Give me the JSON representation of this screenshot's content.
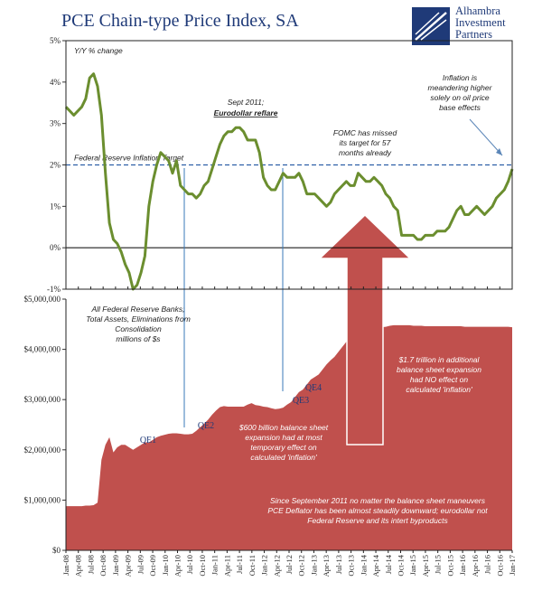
{
  "header": {
    "title": "PCE Chain-type Price Index, SA",
    "logo_line1": "Alhambra",
    "logo_line2": "Investment",
    "logo_line3": "Partners"
  },
  "colors": {
    "pce_line": "#6b8e2f",
    "balance_fill": "#c0504d",
    "target_line": "#2e5fa8",
    "qe_marker": "#3a7ab8",
    "text_dark": "#1f3a78",
    "annotation_white": "#ffffff"
  },
  "chart_data": [
    {
      "type": "line",
      "title": "PCE Chain-type Price Index, SA",
      "ylabel": "Y/Y % change",
      "ylim": [
        -1,
        5
      ],
      "yticks": [
        -1,
        0,
        1,
        2,
        3,
        4,
        5
      ],
      "ytick_labels": [
        "-1%",
        "0%",
        "1%",
        "2%",
        "3%",
        "4%",
        "5%"
      ],
      "x_start": "Jan-08",
      "x_end": "Jan-17",
      "series": [
        {
          "name": "PCE Y/Y",
          "values": [
            3.4,
            3.3,
            3.2,
            3.3,
            3.4,
            3.6,
            4.1,
            4.2,
            3.9,
            3.2,
            1.8,
            0.6,
            0.2,
            0.1,
            -0.1,
            -0.4,
            -0.6,
            -1.0,
            -0.9,
            -0.6,
            -0.2,
            1.0,
            1.6,
            2.0,
            2.3,
            2.2,
            2.1,
            1.8,
            2.1,
            1.5,
            1.4,
            1.3,
            1.3,
            1.2,
            1.3,
            1.5,
            1.6,
            1.9,
            2.2,
            2.5,
            2.7,
            2.8,
            2.8,
            2.9,
            2.9,
            2.8,
            2.6,
            2.6,
            2.6,
            2.3,
            1.7,
            1.5,
            1.4,
            1.4,
            1.6,
            1.8,
            1.7,
            1.7,
            1.7,
            1.8,
            1.6,
            1.3,
            1.3,
            1.3,
            1.2,
            1.1,
            1.0,
            1.1,
            1.3,
            1.4,
            1.5,
            1.6,
            1.5,
            1.5,
            1.8,
            1.7,
            1.6,
            1.6,
            1.7,
            1.6,
            1.5,
            1.3,
            1.2,
            1.0,
            0.9,
            0.3,
            0.3,
            0.3,
            0.3,
            0.2,
            0.2,
            0.3,
            0.3,
            0.3,
            0.4,
            0.4,
            0.4,
            0.5,
            0.7,
            0.9,
            1.0,
            0.8,
            0.8,
            0.9,
            1.0,
            0.9,
            0.8,
            0.9,
            1.0,
            1.2,
            1.3,
            1.4,
            1.6,
            1.9
          ]
        }
      ],
      "reference_line": {
        "label": "Federal Reserve Inflation Target",
        "value": 2.0
      },
      "annotations": [
        {
          "text_lines": [
            "Sept 2011;",
            "Eurodollar reflare"
          ]
        },
        {
          "text_lines": [
            "FOMC has missed",
            "its target for 57",
            "months already"
          ]
        },
        {
          "text_lines": [
            "Inflation is",
            "meandering higher",
            "solely on oil price",
            "base effects"
          ]
        }
      ]
    },
    {
      "type": "area",
      "title": "All Federal Reserve Banks; Total Assets, Eliminations from Consolidation",
      "ylabel": "millions of $s",
      "ylim": [
        0,
        5000000
      ],
      "yticks": [
        0,
        1000000,
        2000000,
        3000000,
        4000000,
        5000000
      ],
      "ytick_labels": [
        "$0",
        "$1,000,000",
        "$2,000,000",
        "$3,000,000",
        "$4,000,000",
        "$5,000,000"
      ],
      "label_lines": [
        "All Federal Reserve Banks;",
        "Total Assets, Eliminations from",
        "Consolidation",
        "millions of $s"
      ],
      "series": [
        {
          "name": "Total Assets",
          "values": [
            880000,
            880000,
            880000,
            880000,
            880000,
            890000,
            890000,
            900000,
            950000,
            1800000,
            2100000,
            2250000,
            1950000,
            2050000,
            2100000,
            2100000,
            2050000,
            2000000,
            2050000,
            2100000,
            2150000,
            2150000,
            2200000,
            2250000,
            2280000,
            2300000,
            2320000,
            2330000,
            2330000,
            2320000,
            2310000,
            2310000,
            2320000,
            2380000,
            2450000,
            2520000,
            2600000,
            2700000,
            2780000,
            2850000,
            2870000,
            2860000,
            2860000,
            2860000,
            2860000,
            2860000,
            2900000,
            2930000,
            2890000,
            2880000,
            2860000,
            2850000,
            2830000,
            2810000,
            2820000,
            2840000,
            2900000,
            2950000,
            3050000,
            3150000,
            3200000,
            3300000,
            3400000,
            3450000,
            3500000,
            3600000,
            3700000,
            3780000,
            3850000,
            3950000,
            4050000,
            4150000,
            4200000,
            4250000,
            4300000,
            4350000,
            4380000,
            4400000,
            4420000,
            4430000,
            4440000,
            4450000,
            4470000,
            4480000,
            4480000,
            4480000,
            4480000,
            4480000,
            4470000,
            4470000,
            4470000,
            4460000,
            4460000,
            4460000,
            4460000,
            4460000,
            4460000,
            4460000,
            4460000,
            4460000,
            4460000,
            4450000,
            4450000,
            4450000,
            4450000,
            4450000,
            4450000,
            4450000,
            4450000,
            4450000,
            4450000,
            4450000,
            4450000,
            4440000
          ]
        }
      ],
      "qe_labels": [
        "QE1",
        "QE2",
        "QE3",
        "QE4"
      ],
      "annotations": [
        {
          "text_lines": [
            "$600 billion balance sheet",
            "expansion had at most",
            "temporary effect on",
            "calculated 'inflation'"
          ]
        },
        {
          "text_lines": [
            "$1.7 trillion in additional",
            "balance sheet expansion",
            "had NO effect on",
            "calculated 'inflation'"
          ]
        },
        {
          "text_lines": [
            "Since September 2011 no matter the balance sheet maneuvers",
            "PCE Deflator has been almost steadily downward; eurodollar not",
            "Federal Reserve and its intert byproducts"
          ]
        }
      ]
    }
  ],
  "x_axis": {
    "categories": [
      "Jan-08",
      "Apr-08",
      "Jul-08",
      "Oct-08",
      "Jan-09",
      "Apr-09",
      "Jul-09",
      "Oct-09",
      "Jan-10",
      "Apr-10",
      "Jul-10",
      "Oct-10",
      "Jan-11",
      "Apr-11",
      "Jul-11",
      "Oct-11",
      "Jan-12",
      "Apr-12",
      "Jul-12",
      "Oct-12",
      "Jan-13",
      "Apr-13",
      "Jul-13",
      "Oct-13",
      "Jan-14",
      "Apr-14",
      "Jul-14",
      "Oct-14",
      "Jan-15",
      "Apr-15",
      "Jul-15",
      "Oct-15",
      "Jan-16",
      "Apr-16",
      "Jul-16",
      "Oct-16",
      "Jan-17"
    ]
  }
}
